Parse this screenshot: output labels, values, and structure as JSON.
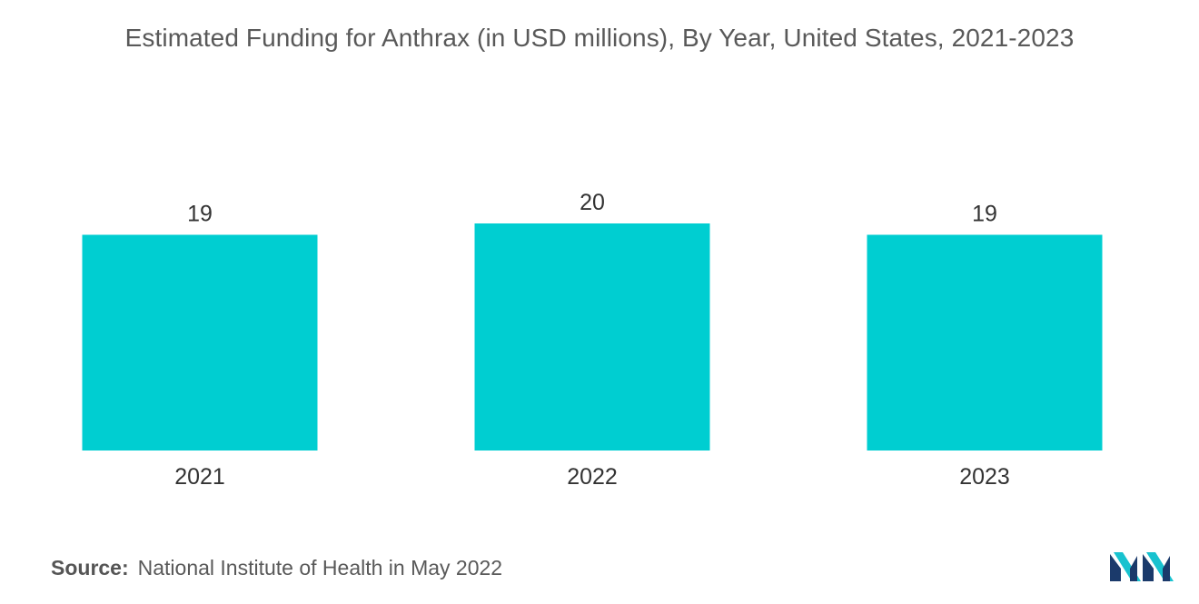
{
  "title": "Estimated Funding for Anthrax (in USD millions), By Year, United States, 2021-2023",
  "source": {
    "label": "Source:",
    "text": "National Institute of Health in May 2022"
  },
  "logo": {
    "icon": "mordor-intelligence-logo-icon",
    "colors": [
      "#1b3a6b",
      "#18c2cf"
    ]
  },
  "colors": {
    "bar": "#00ced1",
    "text": "#333333",
    "title": "#595959"
  },
  "chart_data": {
    "type": "bar",
    "title": "Estimated Funding for Anthrax (in USD millions), By Year, United States, 2021-2023",
    "categories": [
      "2021",
      "2022",
      "2023"
    ],
    "values": [
      19,
      20,
      19
    ],
    "data_labels": [
      "19",
      "20",
      "19"
    ],
    "xlabel": "",
    "ylabel": "",
    "ylim": [
      0,
      20
    ],
    "grid": false,
    "legend": "none",
    "y_axis_visible": false
  }
}
